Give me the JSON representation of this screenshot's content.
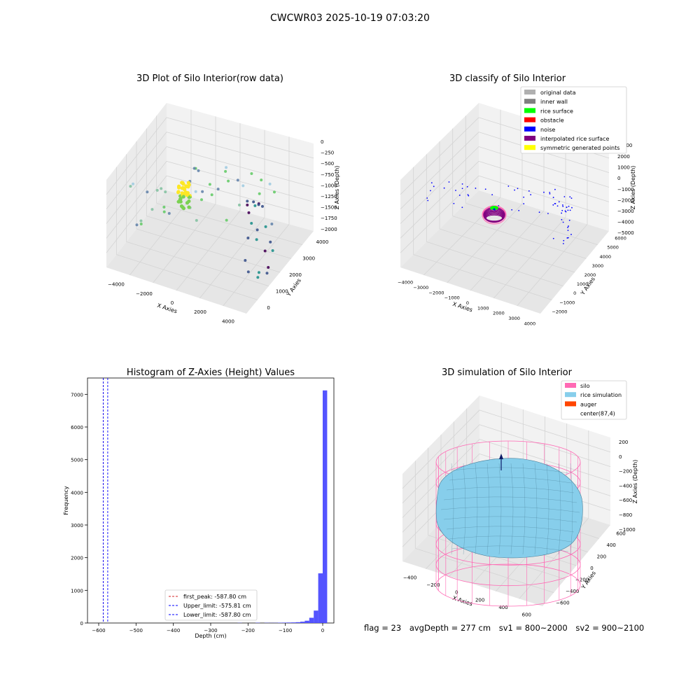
{
  "figure": {
    "title": "CWCWR03 2025-10-19 07:03:20"
  },
  "status_line": {
    "flag": "flag = 23",
    "avg_depth": "avgDepth = 277 cm",
    "sv1": "sv1 = 800~2000",
    "sv2": "sv2 = 900~2100"
  },
  "colors": {
    "hist_bar": "#4b4bff",
    "first_peak": "#d62728",
    "limits": "#0000ff",
    "silo": "#ff69b4",
    "rice": "#87ceeb",
    "auger": "#ff4500",
    "original": "#b0b0b0",
    "inner_wall": "#808080",
    "rice_surface": "#00ff00",
    "obstacle": "#ff0000",
    "noise": "#0000ff",
    "interpolated": "#800080",
    "symmetric": "#ffff00"
  },
  "chart_data": [
    {
      "type": "scatter",
      "title": "3D Plot of Silo Interior(row data)",
      "xlabel": "X Axies",
      "ylabel": "Y Axies",
      "zlabel": "Z Axies (Depth)",
      "x_ticks": [
        "−4000",
        "−2000",
        "0",
        "2000",
        "4000"
      ],
      "y_ticks": [
        "0",
        "1000",
        "2000",
        "3000",
        "4000"
      ],
      "z_ticks": [
        "0",
        "−250",
        "−500",
        "−750",
        "−1000",
        "−1250",
        "−1500",
        "−1750",
        "−2000"
      ],
      "xlim": [
        -4500,
        4500
      ],
      "ylim": [
        -500,
        4500
      ],
      "zlim": [
        -2100,
        100
      ],
      "colormap": "viridis"
    },
    {
      "type": "scatter",
      "title": "3D classify of Silo Interior",
      "xlabel": "X Axies",
      "ylabel": "Y Axies",
      "zlabel": "Z Axies (Depth)",
      "x_ticks": [
        "−4000",
        "−3000",
        "−2000",
        "−1000",
        "0",
        "1000",
        "2000",
        "3000",
        "4000"
      ],
      "y_ticks": [
        "−2000",
        "−1000",
        "0",
        "1000",
        "2000",
        "3000",
        "4000",
        "5000",
        "6000"
      ],
      "z_ticks": [
        "2000",
        "1000",
        "0",
        "−1000",
        "−2000",
        "−3000",
        "−4000",
        "−5000"
      ],
      "z_hidden_tick": "000",
      "legend": [
        {
          "label": "original data",
          "color": "#b0b0b0"
        },
        {
          "label": "inner wall",
          "color": "#808080"
        },
        {
          "label": "rice surface",
          "color": "#00ff00"
        },
        {
          "label": "obstacle",
          "color": "#ff0000"
        },
        {
          "label": "noise",
          "color": "#0000ff"
        },
        {
          "label": "interpolated rice surface",
          "color": "#800080"
        },
        {
          "label": "symmetric generated points",
          "color": "#ffff00"
        }
      ]
    },
    {
      "type": "bar",
      "title": "Histogram of Z-Axies (Height) Values",
      "xlabel": "Depth (cm)",
      "ylabel": "Frequency",
      "xlim": [
        -630,
        30
      ],
      "ylim": [
        0,
        7500
      ],
      "x_ticks": [
        {
          "v": -600,
          "t": "−600"
        },
        {
          "v": -500,
          "t": "−500"
        },
        {
          "v": -400,
          "t": "−400"
        },
        {
          "v": -300,
          "t": "−300"
        },
        {
          "v": -200,
          "t": "−200"
        },
        {
          "v": -100,
          "t": "−100"
        },
        {
          "v": 0,
          "t": "0"
        }
      ],
      "y_ticks": [
        {
          "v": 0,
          "t": "0"
        },
        {
          "v": 1000,
          "t": "1000"
        },
        {
          "v": 2000,
          "t": "2000"
        },
        {
          "v": 3000,
          "t": "3000"
        },
        {
          "v": 4000,
          "t": "4000"
        },
        {
          "v": 5000,
          "t": "5000"
        },
        {
          "v": 6000,
          "t": "6000"
        },
        {
          "v": 7000,
          "t": "7000"
        }
      ],
      "bins": [
        {
          "x0": -228,
          "x1": -216,
          "count": 5
        },
        {
          "x0": -180,
          "x1": -168,
          "count": 8
        },
        {
          "x0": -156,
          "x1": -144,
          "count": 6
        },
        {
          "x0": -144,
          "x1": -132,
          "count": 4
        },
        {
          "x0": -132,
          "x1": -120,
          "count": 5
        },
        {
          "x0": -120,
          "x1": -108,
          "count": 10
        },
        {
          "x0": -108,
          "x1": -96,
          "count": 12
        },
        {
          "x0": -96,
          "x1": -84,
          "count": 15
        },
        {
          "x0": -84,
          "x1": -72,
          "count": 18
        },
        {
          "x0": -72,
          "x1": -60,
          "count": 25
        },
        {
          "x0": -60,
          "x1": -48,
          "count": 40
        },
        {
          "x0": -48,
          "x1": -36,
          "count": 70
        },
        {
          "x0": -36,
          "x1": -24,
          "count": 160
        },
        {
          "x0": -24,
          "x1": -12,
          "count": 380
        },
        {
          "x0": -12,
          "x1": 0,
          "count": 1520
        },
        {
          "x0": 0,
          "x1": 12,
          "count": 7120
        }
      ],
      "vlines": [
        {
          "name": "first_peak: -587.80 cm",
          "x": -587.8,
          "color": "#d62728"
        },
        {
          "name": "Upper_limit: -575.81 cm",
          "x": -575.81,
          "color": "#0000ff"
        },
        {
          "name": "Lower_limit: -587.80 cm",
          "x": -587.8,
          "color": "#0000ff"
        }
      ]
    },
    {
      "type": "scatter",
      "title": "3D simulation of Silo Interior",
      "xlabel": "X Axies",
      "ylabel": "Y Axies",
      "zlabel": "Z Axies (Depth)",
      "x_ticks": [
        "−400",
        "−200",
        "0",
        "200",
        "400",
        "600"
      ],
      "y_ticks": [
        "−600",
        "−400",
        "−200",
        "0",
        "200",
        "400",
        "600"
      ],
      "z_ticks": [
        "200",
        "0",
        "−200",
        "−400",
        "−600",
        "−800",
        "−1000"
      ],
      "legend": [
        {
          "label": "silo",
          "color": "#ff69b4"
        },
        {
          "label": "rice simulation",
          "color": "#87ceeb"
        },
        {
          "label": "auger",
          "color": "#ff4500"
        },
        {
          "label": "center(87,4)",
          "color": ""
        }
      ]
    }
  ]
}
